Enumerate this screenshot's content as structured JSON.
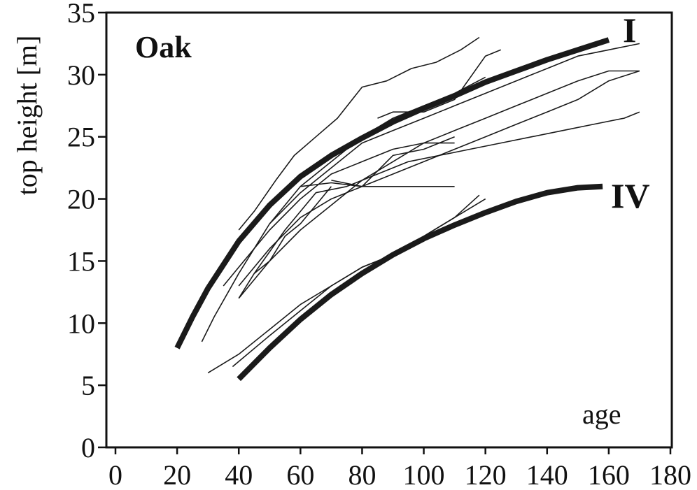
{
  "chart_data": {
    "type": "line",
    "title": "Oak",
    "xlabel": "age",
    "ylabel": "top height [m]",
    "xlim": [
      0,
      180
    ],
    "ylim": [
      0,
      35
    ],
    "xticks": [
      0,
      20,
      40,
      60,
      80,
      100,
      120,
      140,
      160,
      180
    ],
    "yticks": [
      0,
      5,
      10,
      15,
      20,
      25,
      30,
      35
    ],
    "grid": false,
    "legend": "none",
    "colors": {
      "line": "#1a1a1a",
      "axis": "#111111",
      "background": "#ffffff"
    },
    "reference_curves": [
      {
        "name": "I",
        "x": [
          20,
          25,
          30,
          40,
          50,
          60,
          70,
          80,
          90,
          100,
          110,
          120,
          130,
          140,
          150,
          160
        ],
        "y": [
          8.0,
          10.5,
          12.8,
          16.6,
          19.5,
          21.8,
          23.5,
          24.9,
          26.2,
          27.3,
          28.3,
          29.4,
          30.3,
          31.2,
          32.0,
          32.8
        ]
      },
      {
        "name": "IV",
        "x": [
          40,
          50,
          60,
          70,
          80,
          90,
          100,
          110,
          120,
          130,
          140,
          150,
          158
        ],
        "y": [
          5.5,
          8.0,
          10.3,
          12.3,
          14.0,
          15.5,
          16.8,
          17.9,
          18.9,
          19.8,
          20.5,
          20.9,
          21.0
        ]
      }
    ],
    "observed_series": [
      {
        "x": [
          28,
          32,
          40,
          50,
          60,
          70,
          80,
          90,
          100,
          110,
          120
        ],
        "y": [
          8.5,
          10.5,
          14.0,
          18.0,
          21.0,
          23.0,
          25.0,
          26.5,
          27.5,
          28.5,
          29.8
        ]
      },
      {
        "x": [
          40,
          45,
          52,
          58,
          65,
          72,
          80,
          88,
          96,
          104,
          112,
          118
        ],
        "y": [
          17.5,
          19.0,
          21.5,
          23.5,
          25.0,
          26.5,
          29.0,
          29.5,
          30.5,
          31.0,
          32.0,
          33.0
        ]
      },
      {
        "x": [
          40,
          50,
          60,
          70,
          80,
          90,
          100,
          110,
          120,
          130,
          140,
          150,
          160,
          170
        ],
        "y": [
          13.0,
          16.0,
          18.5,
          20.0,
          21.0,
          22.0,
          23.0,
          24.0,
          25.0,
          26.0,
          27.0,
          28.0,
          29.5,
          30.3
        ]
      },
      {
        "x": [
          45,
          55,
          65,
          75,
          85,
          95,
          105,
          115,
          125,
          135,
          145,
          155,
          165,
          170
        ],
        "y": [
          14.0,
          17.5,
          20.5,
          21.0,
          22.0,
          23.0,
          23.5,
          24.0,
          24.5,
          25.0,
          25.5,
          26.0,
          26.5,
          27.0
        ]
      },
      {
        "x": [
          40,
          50,
          60,
          70,
          80,
          90,
          100,
          110,
          120,
          130,
          140,
          150,
          160,
          170
        ],
        "y": [
          12.0,
          15.0,
          17.5,
          19.5,
          21.5,
          23.0,
          24.5,
          25.5,
          26.5,
          27.5,
          28.5,
          29.5,
          30.3,
          30.3
        ]
      },
      {
        "x": [
          50,
          60,
          70,
          80,
          90,
          100,
          110,
          120,
          130,
          140,
          150,
          160,
          170
        ],
        "y": [
          18.0,
          20.5,
          22.5,
          24.5,
          25.5,
          26.5,
          27.5,
          28.5,
          29.5,
          30.5,
          31.5,
          32.0,
          32.5
        ]
      },
      {
        "x": [
          60,
          70,
          80,
          90,
          100,
          110
        ],
        "y": [
          21.0,
          21.3,
          21.0,
          21.0,
          21.0,
          21.0
        ]
      },
      {
        "x": [
          40,
          45,
          50,
          55,
          60,
          65,
          70
        ],
        "y": [
          12.0,
          14.0,
          15.0,
          17.0,
          18.0,
          19.5,
          21.0
        ]
      },
      {
        "x": [
          35,
          40,
          50,
          60,
          70,
          80,
          90,
          100,
          110
        ],
        "y": [
          13.0,
          14.5,
          17.5,
          20.0,
          22.0,
          23.0,
          24.0,
          24.5,
          24.5
        ]
      },
      {
        "x": [
          85,
          90,
          100,
          110,
          120,
          125
        ],
        "y": [
          26.5,
          27.0,
          27.0,
          28.0,
          31.5,
          32.0
        ]
      },
      {
        "x": [
          70,
          80,
          90,
          100,
          110
        ],
        "y": [
          21.5,
          21.0,
          23.5,
          24.0,
          25.0
        ]
      },
      {
        "x": [
          30,
          40,
          50,
          60,
          70,
          80,
          90,
          100,
          110,
          120
        ],
        "y": [
          6.0,
          7.5,
          9.5,
          11.5,
          13.0,
          14.5,
          15.5,
          17.0,
          18.5,
          20.0
        ]
      },
      {
        "x": [
          38,
          50,
          60,
          70,
          80,
          90,
          100,
          110,
          118
        ],
        "y": [
          6.5,
          9.0,
          11.0,
          13.0,
          14.5,
          15.5,
          17.0,
          18.5,
          20.3
        ]
      }
    ]
  },
  "labels": {
    "title": "Oak",
    "x_axis": "age",
    "y_axis": "top height [m]",
    "curve_upper": "I",
    "curve_lower": "IV"
  }
}
